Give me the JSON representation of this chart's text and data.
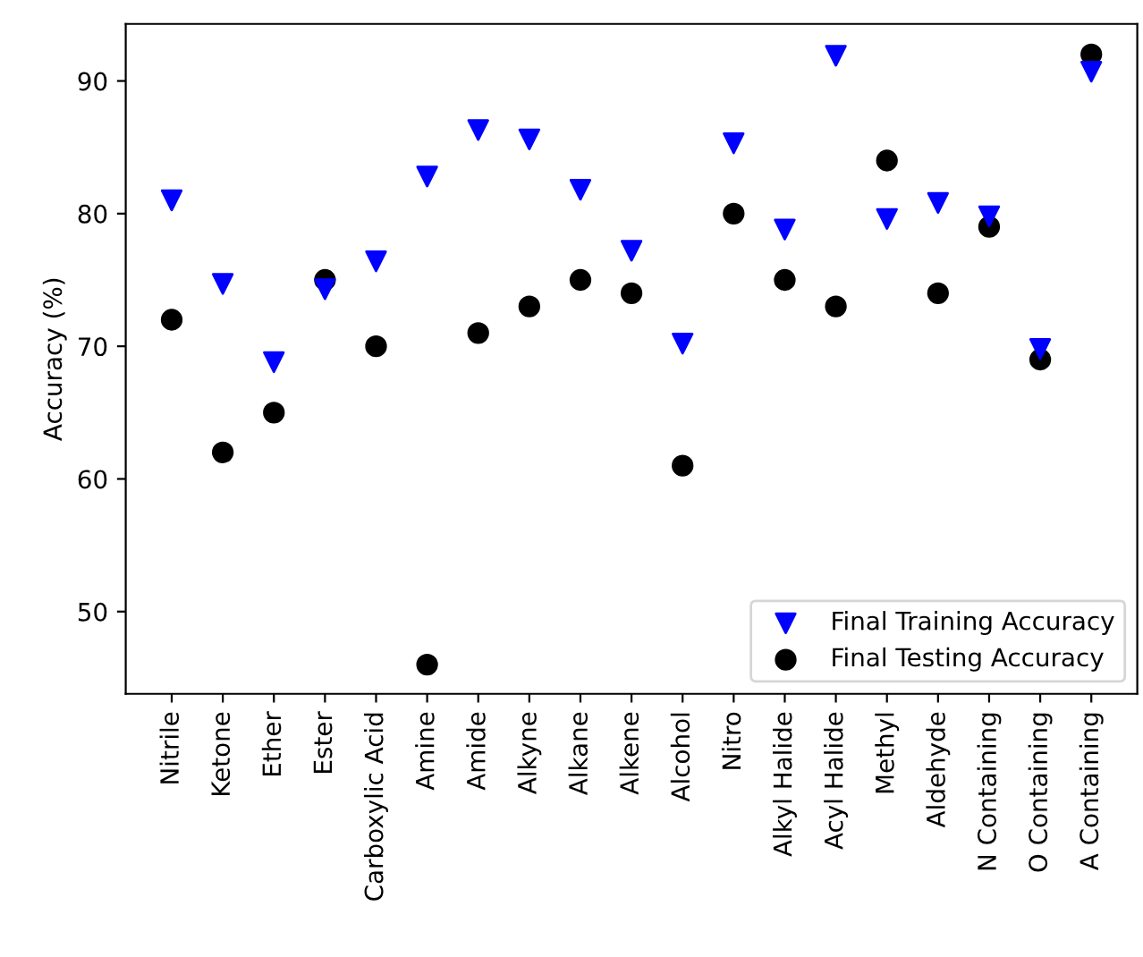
{
  "chart_data": {
    "type": "scatter",
    "ylabel": "Accuracy (%)",
    "categories": [
      "Nitrile",
      "Ketone",
      "Ether",
      "Ester",
      "Carboxylic Acid",
      "Amine",
      "Amide",
      "Alkyne",
      "Alkane",
      "Alkene",
      "Alcohol",
      "Nitro",
      "Alkyl Halide",
      "Acyl Halide",
      "Methyl",
      "Aldehyde",
      "N Containing",
      "O Containing",
      "A Containing"
    ],
    "series": [
      {
        "name": "Final Training Accuracy",
        "color": "#0000ff",
        "marker": "triangle",
        "values": [
          81.0,
          74.7,
          68.8,
          74.3,
          76.4,
          82.8,
          86.3,
          85.6,
          81.8,
          77.2,
          70.2,
          85.3,
          78.8,
          91.9,
          79.6,
          80.8,
          79.8,
          69.8,
          90.7
        ]
      },
      {
        "name": "Final Testing Accuracy",
        "color": "#000000",
        "marker": "circle",
        "values": [
          72,
          62,
          65,
          75,
          70,
          46,
          71,
          73,
          75,
          74,
          61,
          80,
          75,
          73,
          84,
          74,
          79,
          69,
          92
        ]
      }
    ],
    "ylim": [
      43.8,
      94.3
    ],
    "yticks": [
      50,
      60,
      70,
      80,
      90
    ],
    "legend": "bottom right",
    "grid": false
  }
}
